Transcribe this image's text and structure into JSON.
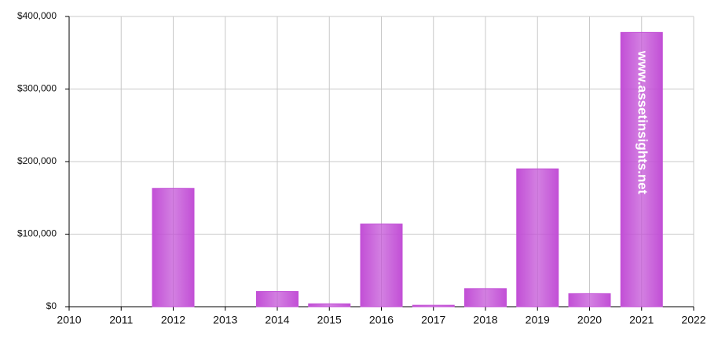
{
  "chart_data": {
    "type": "bar",
    "x": [
      2012,
      2014,
      2015,
      2016,
      2017,
      2018,
      2019,
      2020,
      2021
    ],
    "values": [
      163000,
      21000,
      4000,
      114000,
      2000,
      25000,
      190000,
      18000,
      378000
    ],
    "color": "#c24fd6",
    "xlim": [
      2010,
      2022
    ],
    "xticks": [
      2010,
      2011,
      2012,
      2013,
      2014,
      2015,
      2016,
      2017,
      2018,
      2019,
      2020,
      2021,
      2022
    ],
    "ylim": [
      0,
      400000
    ],
    "yticks": [
      {
        "value": 0,
        "label": "$0"
      },
      {
        "value": 100000,
        "label": "$100,000"
      },
      {
        "value": 200000,
        "label": "$200,000"
      },
      {
        "value": 300000,
        "label": "$300,000"
      },
      {
        "value": 400000,
        "label": "$400,000"
      }
    ],
    "grid": true,
    "watermark": "www.assetinsights.net"
  }
}
